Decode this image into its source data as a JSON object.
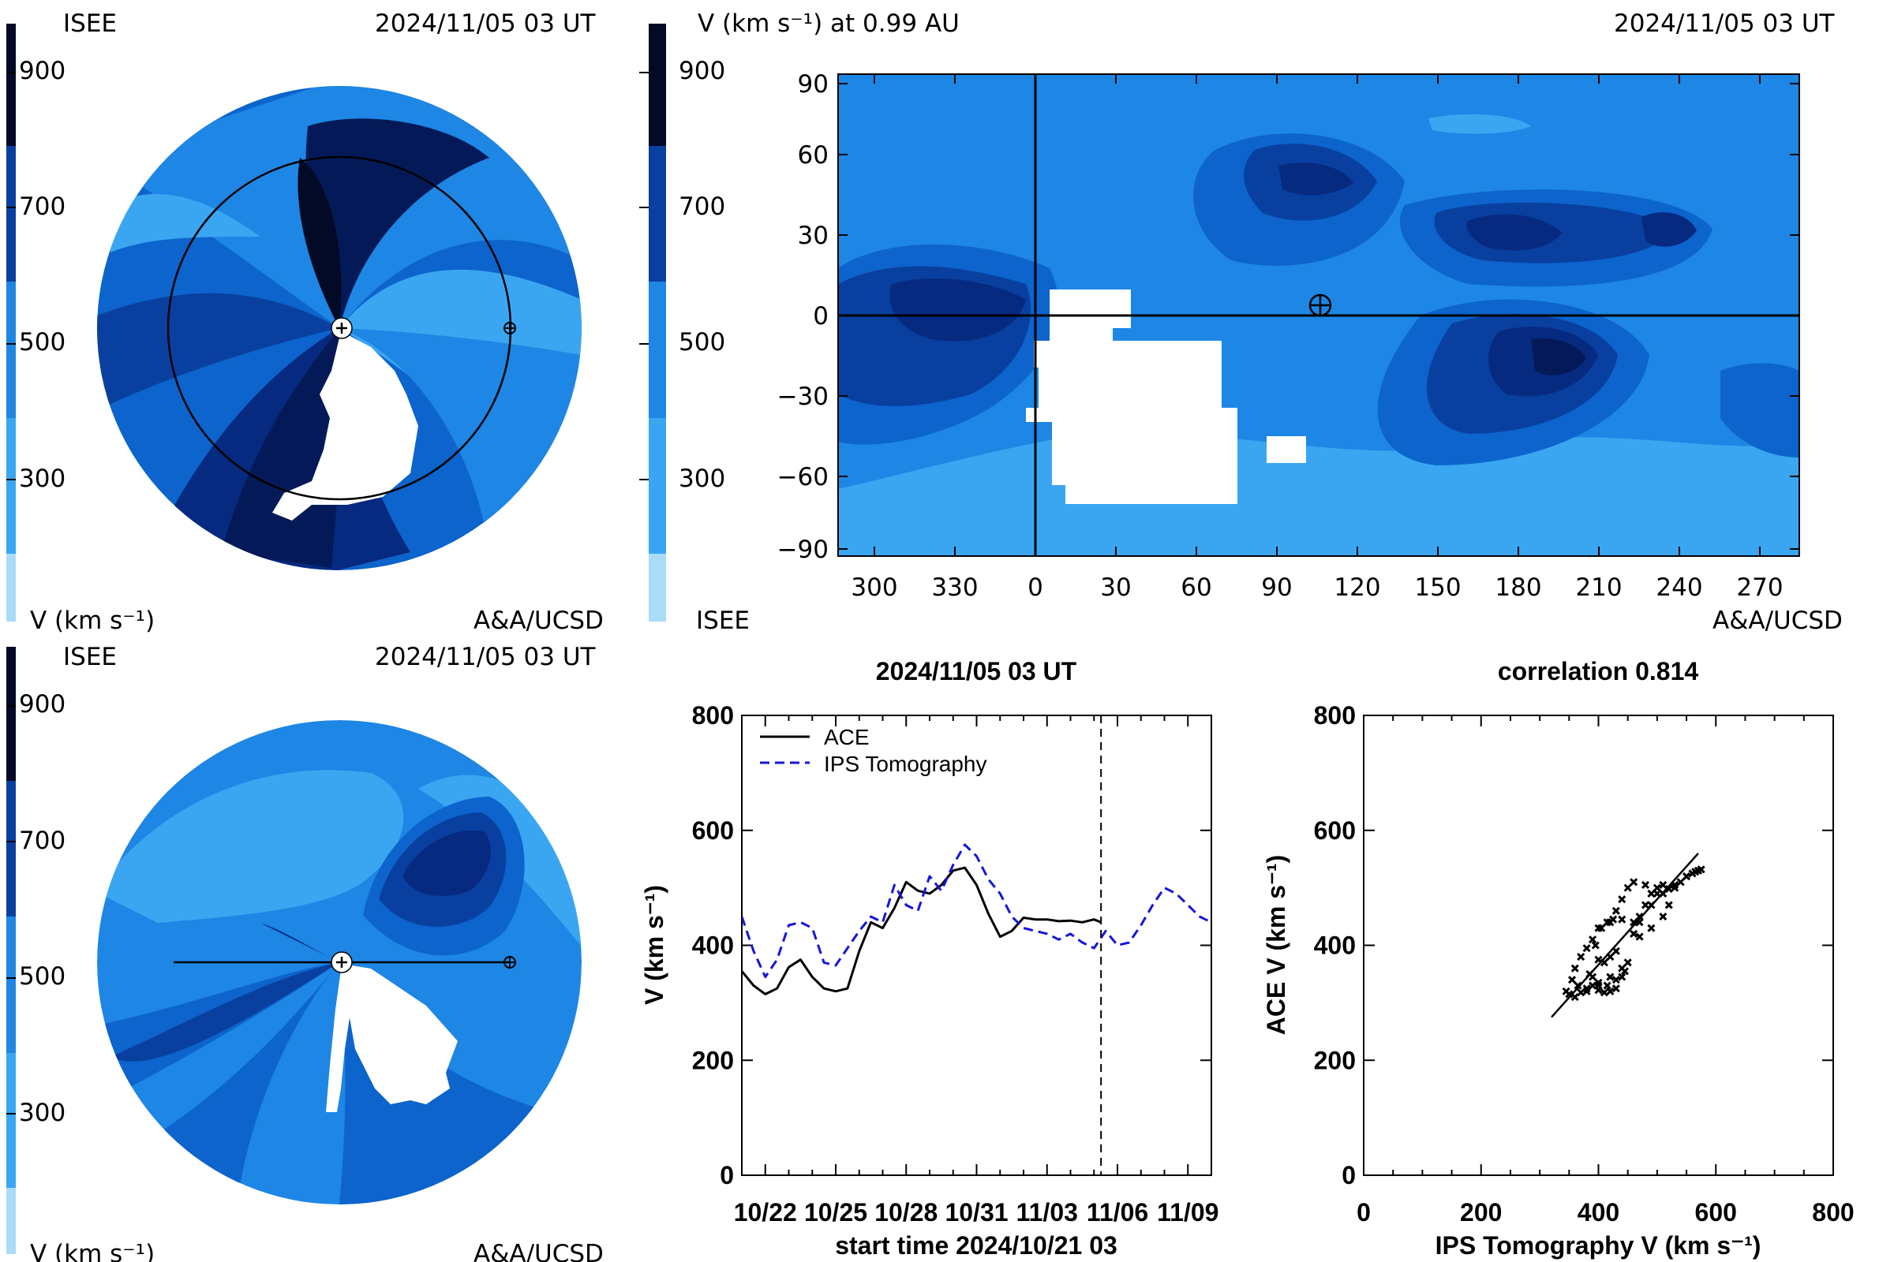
{
  "colors": {
    "scale": [
      "#a8dcf8",
      "#3aa6f2",
      "#1e86e4",
      "#0c64cc",
      "#0940a0",
      "#062a80",
      "#041a58",
      "#020a26"
    ],
    "background": "#1e86e4",
    "ace_line": "#000000",
    "ips_line": "#1515d8"
  },
  "colorbar": {
    "ticks": [
      {
        "value": 300,
        "label": "300"
      },
      {
        "value": 500,
        "label": "500"
      },
      {
        "value": 700,
        "label": "700"
      },
      {
        "value": 900,
        "label": "900"
      }
    ]
  },
  "panel_top_left": {
    "source": "ISEE",
    "timestamp": "2024/11/05 03 UT",
    "unit_label": "V (km s⁻¹)",
    "credit": "A&A/UCSD"
  },
  "panel_top_right": {
    "title": "V (km s⁻¹) at 0.99 AU",
    "timestamp": "2024/11/05 03 UT",
    "source": "ISEE",
    "credit": "A&A/UCSD",
    "x_ticks": [
      "300",
      "330",
      "0",
      "30",
      "60",
      "90",
      "120",
      "150",
      "180",
      "210",
      "240",
      "270"
    ],
    "y_ticks": [
      "90",
      "60",
      "30",
      "0",
      "−30",
      "−60",
      "−90"
    ],
    "earth_symbol": "⊕"
  },
  "panel_bottom_left": {
    "source": "ISEE",
    "timestamp": "2024/11/05 03 UT",
    "unit_label": "V (km s⁻¹)",
    "credit": "A&A/UCSD"
  },
  "chart_data": [
    {
      "type": "line",
      "title": "2024/11/05 03 UT",
      "xlabel": "start time 2024/10/21 03",
      "ylabel": "V (km s⁻¹)",
      "ylim": [
        0,
        800
      ],
      "xlim": [
        0,
        20
      ],
      "x_tick_labels": [
        "10/22",
        "10/25",
        "10/28",
        "10/31",
        "11/03",
        "11/06",
        "11/09"
      ],
      "y_tick_labels": [
        "0",
        "200",
        "400",
        "600",
        "800"
      ],
      "now_marker_day": 15.3,
      "legend_position": "top-left",
      "series": [
        {
          "name": "ACE",
          "style": "solid",
          "x": [
            0,
            0.5,
            1,
            1.5,
            2,
            2.5,
            3,
            3.5,
            4,
            4.5,
            5,
            5.5,
            6,
            6.5,
            7,
            7.5,
            8,
            8.5,
            9,
            9.5,
            10,
            10.5,
            11,
            11.5,
            12,
            12.5,
            13,
            13.5,
            14,
            14.5,
            15,
            15.3
          ],
          "values": [
            355,
            330,
            315,
            325,
            362,
            375,
            345,
            325,
            320,
            325,
            390,
            440,
            430,
            465,
            510,
            495,
            490,
            505,
            530,
            535,
            505,
            455,
            415,
            425,
            448,
            445,
            445,
            442,
            443,
            440,
            445,
            440
          ]
        },
        {
          "name": "IPS Tomography",
          "style": "dashed",
          "x": [
            0,
            0.5,
            1,
            1.5,
            2,
            2.5,
            3,
            3.5,
            4,
            4.5,
            5,
            5.5,
            6,
            6.5,
            7,
            7.5,
            8,
            8.5,
            9,
            9.5,
            10,
            10.5,
            11,
            11.5,
            12,
            12.5,
            13,
            13.5,
            14,
            14.5,
            15,
            15.5,
            16,
            16.5,
            17,
            17.5,
            18,
            18.5,
            19,
            19.5,
            20
          ],
          "values": [
            450,
            390,
            345,
            375,
            435,
            440,
            430,
            370,
            365,
            395,
            425,
            450,
            440,
            505,
            470,
            460,
            520,
            495,
            540,
            575,
            555,
            515,
            490,
            450,
            430,
            425,
            420,
            410,
            420,
            405,
            395,
            425,
            400,
            405,
            435,
            470,
            500,
            490,
            470,
            450,
            440
          ]
        }
      ]
    },
    {
      "type": "scatter",
      "title": "correlation 0.814",
      "xlabel": "IPS Tomography V (km s⁻¹)",
      "ylabel": "ACE V (km s⁻¹)",
      "xlim": [
        0,
        800
      ],
      "ylim": [
        0,
        800
      ],
      "x_tick_labels": [
        "0",
        "200",
        "400",
        "600",
        "800"
      ],
      "y_tick_labels": [
        "0",
        "200",
        "400",
        "600",
        "800"
      ],
      "fit_line": {
        "x": [
          320,
          570
        ],
        "y": [
          275,
          560
        ]
      },
      "points": {
        "x": [
          345,
          350,
          360,
          370,
          380,
          390,
          400,
          410,
          420,
          430,
          440,
          450,
          430,
          420,
          410,
          400,
          395,
          405,
          415,
          425,
          440,
          460,
          470,
          480,
          490,
          500,
          510,
          520,
          530,
          540,
          550,
          560,
          570,
          575,
          565,
          550,
          530,
          510,
          490,
          470,
          460,
          470,
          490,
          510,
          520,
          500,
          480,
          460,
          450,
          440,
          430,
          420,
          400,
          390,
          380,
          370,
          360,
          355,
          365,
          380,
          400,
          420,
          440,
          445,
          430,
          415,
          400,
          390,
          385
        ],
        "y": [
          320,
          315,
          310,
          318,
          325,
          330,
          322,
          318,
          320,
          325,
          345,
          370,
          390,
          380,
          370,
          375,
          400,
          430,
          440,
          445,
          445,
          440,
          450,
          470,
          490,
          500,
          505,
          498,
          500,
          510,
          520,
          525,
          530,
          532,
          528,
          520,
          505,
          490,
          470,
          440,
          420,
          415,
          430,
          450,
          470,
          490,
          505,
          510,
          500,
          480,
          460,
          440,
          430,
          410,
          395,
          380,
          360,
          340,
          330,
          320,
          330,
          345,
          360,
          355,
          340,
          330,
          335,
          345,
          350
        ]
      }
    }
  ]
}
